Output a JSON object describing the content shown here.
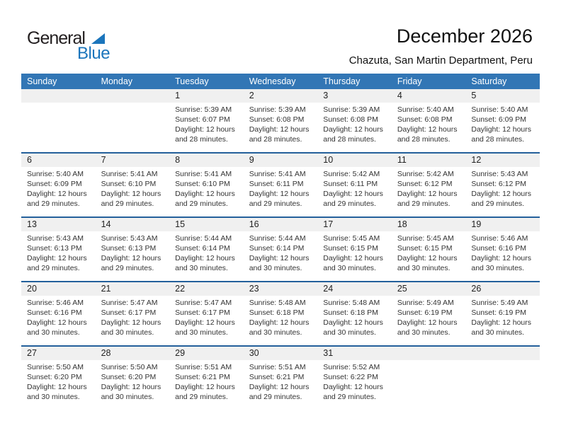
{
  "logo": {
    "general": "General",
    "blue": "Blue"
  },
  "header": {
    "title": "December 2026",
    "subtitle": "Chazuta, San Martin Department, Peru"
  },
  "colors": {
    "header_bg": "#3276b5",
    "row_line": "#24609b",
    "number_band": "#f0f0f0",
    "logo_blue": "#1b75bc"
  },
  "weekdays": [
    "Sunday",
    "Monday",
    "Tuesday",
    "Wednesday",
    "Thursday",
    "Friday",
    "Saturday"
  ],
  "weeks": [
    [
      {
        "day": ""
      },
      {
        "day": ""
      },
      {
        "day": "1",
        "sunrise": "Sunrise: 5:39 AM",
        "sunset": "Sunset: 6:07 PM",
        "daylight": "Daylight: 12 hours and 28 minutes."
      },
      {
        "day": "2",
        "sunrise": "Sunrise: 5:39 AM",
        "sunset": "Sunset: 6:08 PM",
        "daylight": "Daylight: 12 hours and 28 minutes."
      },
      {
        "day": "3",
        "sunrise": "Sunrise: 5:39 AM",
        "sunset": "Sunset: 6:08 PM",
        "daylight": "Daylight: 12 hours and 28 minutes."
      },
      {
        "day": "4",
        "sunrise": "Sunrise: 5:40 AM",
        "sunset": "Sunset: 6:08 PM",
        "daylight": "Daylight: 12 hours and 28 minutes."
      },
      {
        "day": "5",
        "sunrise": "Sunrise: 5:40 AM",
        "sunset": "Sunset: 6:09 PM",
        "daylight": "Daylight: 12 hours and 28 minutes."
      }
    ],
    [
      {
        "day": "6",
        "sunrise": "Sunrise: 5:40 AM",
        "sunset": "Sunset: 6:09 PM",
        "daylight": "Daylight: 12 hours and 29 minutes."
      },
      {
        "day": "7",
        "sunrise": "Sunrise: 5:41 AM",
        "sunset": "Sunset: 6:10 PM",
        "daylight": "Daylight: 12 hours and 29 minutes."
      },
      {
        "day": "8",
        "sunrise": "Sunrise: 5:41 AM",
        "sunset": "Sunset: 6:10 PM",
        "daylight": "Daylight: 12 hours and 29 minutes."
      },
      {
        "day": "9",
        "sunrise": "Sunrise: 5:41 AM",
        "sunset": "Sunset: 6:11 PM",
        "daylight": "Daylight: 12 hours and 29 minutes."
      },
      {
        "day": "10",
        "sunrise": "Sunrise: 5:42 AM",
        "sunset": "Sunset: 6:11 PM",
        "daylight": "Daylight: 12 hours and 29 minutes."
      },
      {
        "day": "11",
        "sunrise": "Sunrise: 5:42 AM",
        "sunset": "Sunset: 6:12 PM",
        "daylight": "Daylight: 12 hours and 29 minutes."
      },
      {
        "day": "12",
        "sunrise": "Sunrise: 5:43 AM",
        "sunset": "Sunset: 6:12 PM",
        "daylight": "Daylight: 12 hours and 29 minutes."
      }
    ],
    [
      {
        "day": "13",
        "sunrise": "Sunrise: 5:43 AM",
        "sunset": "Sunset: 6:13 PM",
        "daylight": "Daylight: 12 hours and 29 minutes."
      },
      {
        "day": "14",
        "sunrise": "Sunrise: 5:43 AM",
        "sunset": "Sunset: 6:13 PM",
        "daylight": "Daylight: 12 hours and 29 minutes."
      },
      {
        "day": "15",
        "sunrise": "Sunrise: 5:44 AM",
        "sunset": "Sunset: 6:14 PM",
        "daylight": "Daylight: 12 hours and 30 minutes."
      },
      {
        "day": "16",
        "sunrise": "Sunrise: 5:44 AM",
        "sunset": "Sunset: 6:14 PM",
        "daylight": "Daylight: 12 hours and 30 minutes."
      },
      {
        "day": "17",
        "sunrise": "Sunrise: 5:45 AM",
        "sunset": "Sunset: 6:15 PM",
        "daylight": "Daylight: 12 hours and 30 minutes."
      },
      {
        "day": "18",
        "sunrise": "Sunrise: 5:45 AM",
        "sunset": "Sunset: 6:15 PM",
        "daylight": "Daylight: 12 hours and 30 minutes."
      },
      {
        "day": "19",
        "sunrise": "Sunrise: 5:46 AM",
        "sunset": "Sunset: 6:16 PM",
        "daylight": "Daylight: 12 hours and 30 minutes."
      }
    ],
    [
      {
        "day": "20",
        "sunrise": "Sunrise: 5:46 AM",
        "sunset": "Sunset: 6:16 PM",
        "daylight": "Daylight: 12 hours and 30 minutes."
      },
      {
        "day": "21",
        "sunrise": "Sunrise: 5:47 AM",
        "sunset": "Sunset: 6:17 PM",
        "daylight": "Daylight: 12 hours and 30 minutes."
      },
      {
        "day": "22",
        "sunrise": "Sunrise: 5:47 AM",
        "sunset": "Sunset: 6:17 PM",
        "daylight": "Daylight: 12 hours and 30 minutes."
      },
      {
        "day": "23",
        "sunrise": "Sunrise: 5:48 AM",
        "sunset": "Sunset: 6:18 PM",
        "daylight": "Daylight: 12 hours and 30 minutes."
      },
      {
        "day": "24",
        "sunrise": "Sunrise: 5:48 AM",
        "sunset": "Sunset: 6:18 PM",
        "daylight": "Daylight: 12 hours and 30 minutes."
      },
      {
        "day": "25",
        "sunrise": "Sunrise: 5:49 AM",
        "sunset": "Sunset: 6:19 PM",
        "daylight": "Daylight: 12 hours and 30 minutes."
      },
      {
        "day": "26",
        "sunrise": "Sunrise: 5:49 AM",
        "sunset": "Sunset: 6:19 PM",
        "daylight": "Daylight: 12 hours and 30 minutes."
      }
    ],
    [
      {
        "day": "27",
        "sunrise": "Sunrise: 5:50 AM",
        "sunset": "Sunset: 6:20 PM",
        "daylight": "Daylight: 12 hours and 30 minutes."
      },
      {
        "day": "28",
        "sunrise": "Sunrise: 5:50 AM",
        "sunset": "Sunset: 6:20 PM",
        "daylight": "Daylight: 12 hours and 30 minutes."
      },
      {
        "day": "29",
        "sunrise": "Sunrise: 5:51 AM",
        "sunset": "Sunset: 6:21 PM",
        "daylight": "Daylight: 12 hours and 29 minutes."
      },
      {
        "day": "30",
        "sunrise": "Sunrise: 5:51 AM",
        "sunset": "Sunset: 6:21 PM",
        "daylight": "Daylight: 12 hours and 29 minutes."
      },
      {
        "day": "31",
        "sunrise": "Sunrise: 5:52 AM",
        "sunset": "Sunset: 6:22 PM",
        "daylight": "Daylight: 12 hours and 29 minutes."
      },
      {
        "day": ""
      },
      {
        "day": ""
      }
    ]
  ]
}
